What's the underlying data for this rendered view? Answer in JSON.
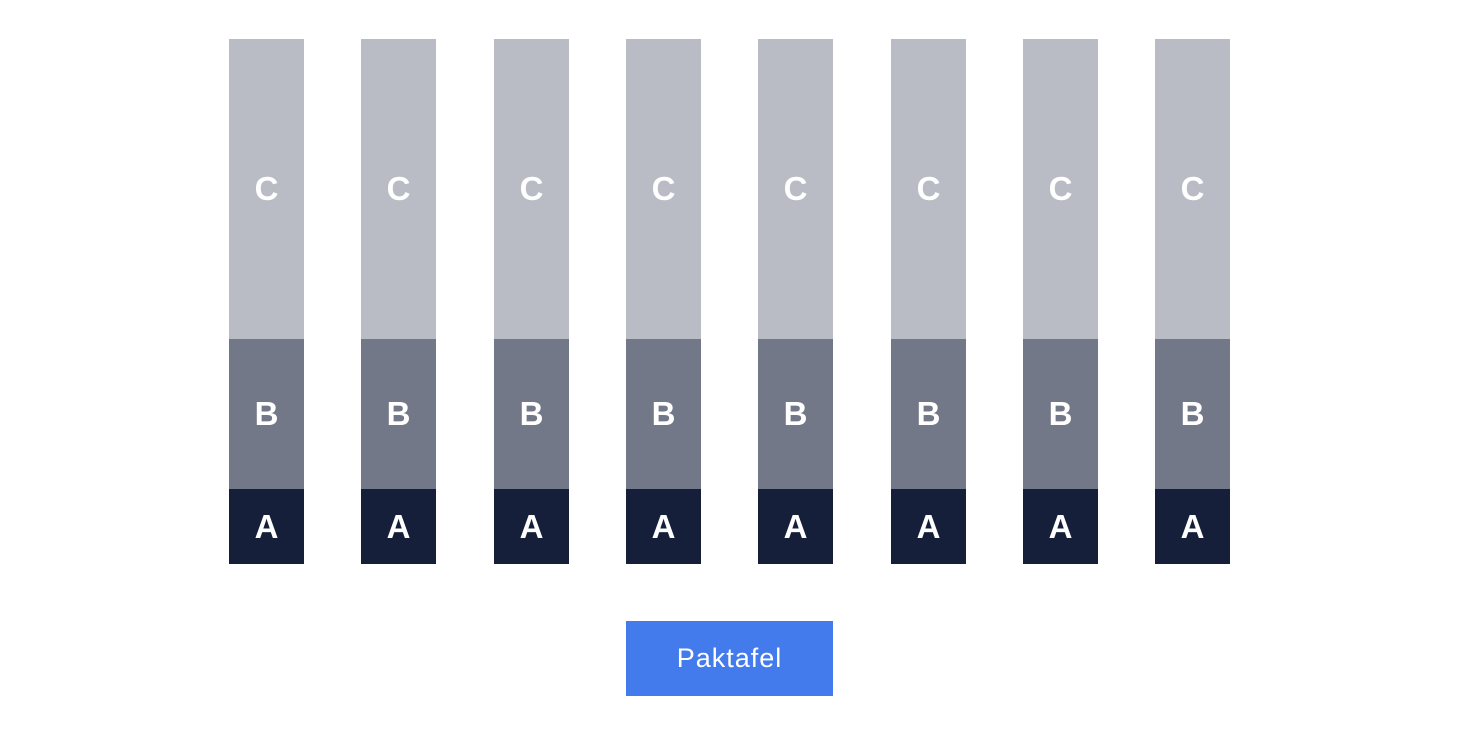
{
  "stack_count": 8,
  "layers": [
    {
      "label": "C",
      "color": "#b9bcc5"
    },
    {
      "label": "B",
      "color": "#737888"
    },
    {
      "label": "A",
      "color": "#161f3a"
    }
  ],
  "button": {
    "label": "Paktafel",
    "color": "#437bec"
  }
}
